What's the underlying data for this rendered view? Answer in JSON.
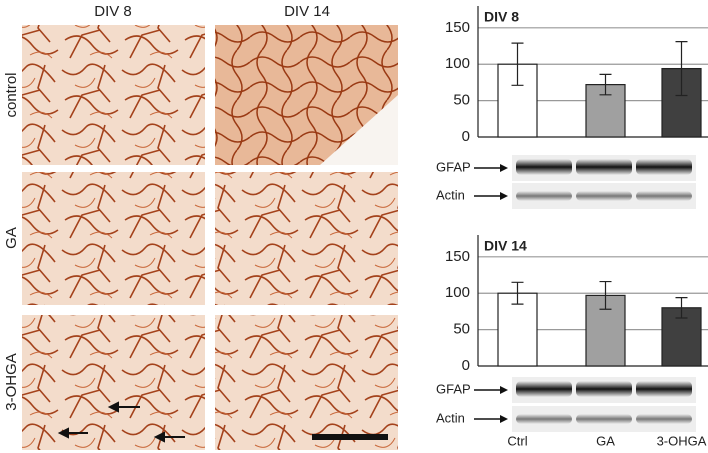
{
  "micrographs": {
    "columns": [
      "DIV 8",
      "DIV 14"
    ],
    "rows": [
      "control",
      "GA",
      "3-OHGA"
    ]
  },
  "chart_data": [
    {
      "type": "bar",
      "title": "DIV 8",
      "categories": [
        null,
        null,
        null
      ],
      "values": [
        100,
        72,
        94
      ],
      "errors": [
        29,
        14,
        37
      ],
      "colors": [
        "#ffffff",
        "#a0a0a0",
        "#404040"
      ],
      "ylim": [
        0,
        180
      ],
      "yticks": [
        0,
        50,
        100,
        150
      ],
      "grid": true
    },
    {
      "type": "bar",
      "title": "DIV 14",
      "categories": [
        "Ctrl",
        "GA",
        "3-OHGA"
      ],
      "values": [
        100,
        97,
        80
      ],
      "errors": [
        15,
        19,
        14
      ],
      "colors": [
        "#ffffff",
        "#a0a0a0",
        "#404040"
      ],
      "ylim": [
        0,
        180
      ],
      "yticks": [
        0,
        50,
        100,
        150
      ],
      "grid": true
    }
  ],
  "blots": [
    {
      "bands": [
        "GFAP",
        "Actin"
      ]
    },
    {
      "bands": [
        "GFAP",
        "Actin"
      ]
    }
  ]
}
